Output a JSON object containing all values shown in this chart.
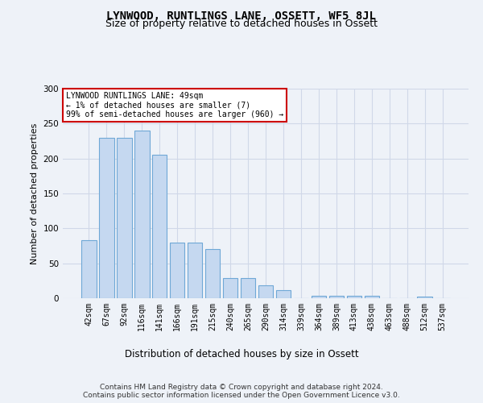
{
  "title": "LYNWOOD, RUNTLINGS LANE, OSSETT, WF5 8JL",
  "subtitle": "Size of property relative to detached houses in Ossett",
  "xlabel": "Distribution of detached houses by size in Ossett",
  "ylabel": "Number of detached properties",
  "categories": [
    "42sqm",
    "67sqm",
    "92sqm",
    "116sqm",
    "141sqm",
    "166sqm",
    "191sqm",
    "215sqm",
    "240sqm",
    "265sqm",
    "290sqm",
    "314sqm",
    "339sqm",
    "364sqm",
    "389sqm",
    "413sqm",
    "438sqm",
    "463sqm",
    "488sqm",
    "512sqm",
    "537sqm"
  ],
  "values": [
    83,
    230,
    230,
    240,
    205,
    80,
    80,
    70,
    29,
    29,
    19,
    12,
    0,
    4,
    4,
    4,
    3,
    0,
    0,
    2,
    0
  ],
  "bar_color": "#c5d8f0",
  "bar_edge_color": "#6fa8d6",
  "ylim": [
    0,
    300
  ],
  "yticks": [
    0,
    50,
    100,
    150,
    200,
    250,
    300
  ],
  "annotation_box_text": "LYNWOOD RUNTLINGS LANE: 49sqm\n← 1% of detached houses are smaller (7)\n99% of semi-detached houses are larger (960) →",
  "annotation_box_color": "#ffffff",
  "annotation_box_edge_color": "#cc0000",
  "grid_color": "#d0d8e8",
  "bg_color": "#eef2f8",
  "plot_bg_color": "#eef2f8",
  "footer_text": "Contains HM Land Registry data © Crown copyright and database right 2024.\nContains public sector information licensed under the Open Government Licence v3.0.",
  "title_fontsize": 10,
  "subtitle_fontsize": 9,
  "tick_fontsize": 7,
  "ylabel_fontsize": 8,
  "xlabel_fontsize": 8.5,
  "footer_fontsize": 6.5
}
